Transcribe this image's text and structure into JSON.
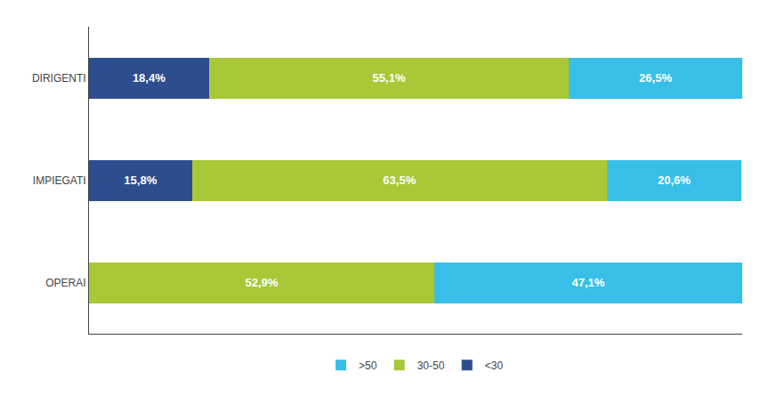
{
  "chart_data": {
    "type": "bar",
    "orientation": "horizontal",
    "stacked": true,
    "data_labels": true,
    "tick_labels": "y",
    "grid": false,
    "legend": "bottom",
    "categories": [
      "OPERAI",
      "IMPIEGATI",
      "DIRIGENTI"
    ],
    "xlim": [
      0,
      100
    ],
    "series": [
      {
        "name": "<30",
        "color": "#2e4d8e",
        "values": [
          0.0,
          15.8,
          18.4
        ],
        "value_labels": [
          null,
          "15,8%",
          "18,4%"
        ]
      },
      {
        "name": "30-50",
        "color": "#a8c837",
        "values": [
          52.9,
          63.5,
          55.1
        ],
        "value_labels": [
          "52,9%",
          "63,5%",
          "55,1%"
        ]
      },
      {
        "name": ">50",
        "color": "#38bfe8",
        "values": [
          47.1,
          20.6,
          26.5
        ],
        "value_labels": [
          "47,1%",
          "20,6%",
          "26,5%"
        ]
      }
    ]
  }
}
